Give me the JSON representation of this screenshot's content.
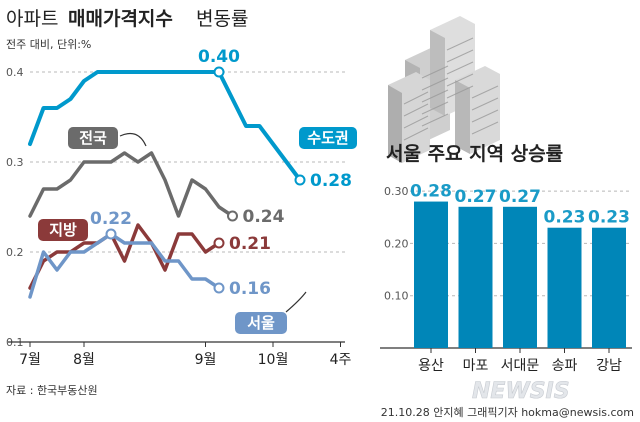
{
  "header": {
    "title_prefix": "아파트",
    "title_main": "매매가격지수",
    "title_suffix": "변동률",
    "unit_note": "전주 대비, 단위:%"
  },
  "footer": {
    "source": "자료 : 한국부동산원",
    "credit": "21.10.28  안지혜  그래픽기자  hokma@newsis.com",
    "brand": "NEWSIS"
  },
  "colors": {
    "capital": "#0099cc",
    "national": "#6b6b6b",
    "regional": "#8b3a3a",
    "seoul": "#6f96c8",
    "bar": "#0086b8",
    "bar_value": "#1a9bc7"
  },
  "chart_data": [
    {
      "type": "line",
      "title": "아파트 매매가격지수 변동률",
      "ylabel": "전주 대비, 단위:%",
      "ylim": [
        0.1,
        0.43
      ],
      "y_ticks": [
        "0.1",
        "0.2",
        "0.3",
        "0.4"
      ],
      "x_labels": [
        "7월",
        "8월",
        "9월",
        "10월",
        "4주"
      ],
      "x_label_index": [
        0,
        4,
        13,
        18,
        23
      ],
      "series": [
        {
          "name": "수도권",
          "key": "capital",
          "end_label": "0.28",
          "peak_label": "0.40",
          "values": [
            0.32,
            0.36,
            0.36,
            0.37,
            0.39,
            0.4,
            0.4,
            0.4,
            0.4,
            0.4,
            0.4,
            0.4,
            0.4,
            0.4,
            0.4,
            0.37,
            0.34,
            0.34,
            0.32,
            0.3,
            0.28
          ]
        },
        {
          "name": "전국",
          "key": "national",
          "end_label": "0.24",
          "values": [
            0.24,
            0.27,
            0.27,
            0.28,
            0.3,
            0.3,
            0.3,
            0.31,
            0.3,
            0.31,
            0.28,
            0.24,
            0.28,
            0.27,
            0.25,
            0.24
          ]
        },
        {
          "name": "지방",
          "key": "regional",
          "end_label": "0.21",
          "values": [
            0.16,
            0.19,
            0.2,
            0.2,
            0.21,
            0.21,
            0.22,
            0.19,
            0.23,
            0.21,
            0.18,
            0.22,
            0.22,
            0.2,
            0.21
          ]
        },
        {
          "name": "서울",
          "key": "seoul",
          "end_label": "0.16",
          "peak_label": "0.22",
          "values": [
            0.15,
            0.2,
            0.18,
            0.2,
            0.2,
            0.21,
            0.22,
            0.21,
            0.21,
            0.21,
            0.19,
            0.19,
            0.17,
            0.17,
            0.16
          ]
        }
      ]
    },
    {
      "type": "bar",
      "title": "서울 주요 지역 상승률",
      "categories": [
        "용산",
        "마포",
        "서대문",
        "송파",
        "강남"
      ],
      "values": [
        0.28,
        0.27,
        0.27,
        0.23,
        0.23
      ],
      "value_labels": [
        "0.28",
        "0.27",
        "0.27",
        "0.23",
        "0.23"
      ],
      "ylim": [
        0,
        0.3
      ],
      "y_ticks": [
        "0.30",
        "0.20",
        "0.10"
      ]
    }
  ]
}
